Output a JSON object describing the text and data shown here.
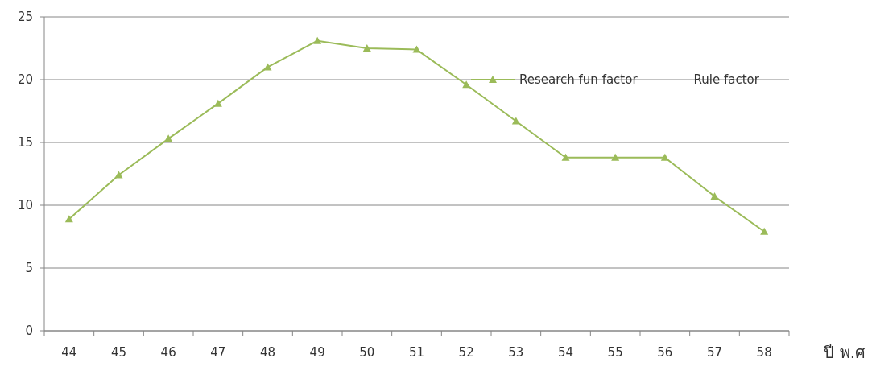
{
  "chart_data": {
    "type": "line",
    "xlabel": "ปี พ.ศ",
    "categories": [
      "44",
      "45",
      "46",
      "47",
      "48",
      "49",
      "50",
      "51",
      "52",
      "53",
      "54",
      "55",
      "56",
      "57",
      "58"
    ],
    "series": [
      {
        "name": "Research fun factor",
        "color": "#9bbb59",
        "values": [
          8.9,
          12.4,
          15.3,
          18.1,
          21.0,
          23.1,
          22.5,
          22.4,
          19.6,
          16.7,
          13.8,
          13.8,
          13.8,
          10.7,
          7.9
        ]
      },
      {
        "name": "Rule factor",
        "color": null,
        "values": [
          null,
          null,
          null,
          null,
          null,
          null,
          null,
          null,
          null,
          null,
          null,
          null,
          null,
          null,
          null
        ]
      }
    ],
    "ylim": [
      0,
      25
    ],
    "yticks": [
      0,
      5,
      10,
      15,
      20,
      25
    ],
    "grid": "y",
    "legend": "top right",
    "marker": "triangle",
    "line_style": "solid"
  }
}
